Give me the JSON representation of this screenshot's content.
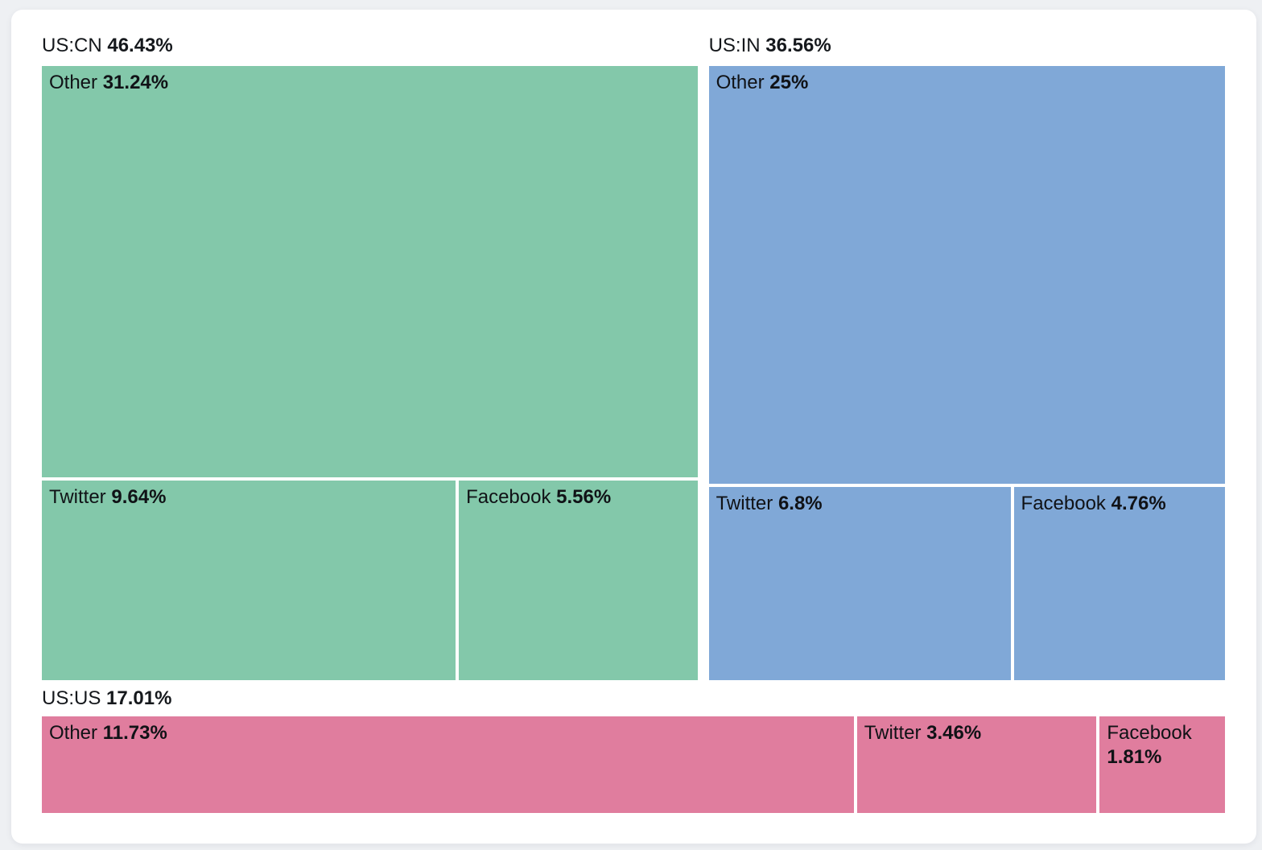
{
  "chart_data": {
    "type": "treemap",
    "title": "",
    "legend": "none",
    "label_color": "#101216",
    "background": "#ffffff",
    "groups": [
      {
        "label": "US:CN",
        "pct_label": "46.43%",
        "value": 46.43,
        "color": "#83c8aa",
        "children": [
          {
            "label": "Other",
            "pct_label": "31.24%",
            "value": 31.24
          },
          {
            "label": "Twitter",
            "pct_label": "9.64%",
            "value": 9.64
          },
          {
            "label": "Facebook",
            "pct_label": "5.56%",
            "value": 5.56
          }
        ]
      },
      {
        "label": "US:IN",
        "pct_label": "36.56%",
        "value": 36.56,
        "color": "#80a8d7",
        "children": [
          {
            "label": "Other",
            "pct_label": "25%",
            "value": 25
          },
          {
            "label": "Twitter",
            "pct_label": "6.8%",
            "value": 6.8
          },
          {
            "label": "Facebook",
            "pct_label": "4.76%",
            "value": 4.76
          }
        ]
      },
      {
        "label": "US:US",
        "pct_label": "17.01%",
        "value": 17.01,
        "color": "#e07d9e",
        "children": [
          {
            "label": "Other",
            "pct_label": "11.73%",
            "value": 11.73
          },
          {
            "label": "Twitter",
            "pct_label": "3.46%",
            "value": 3.46
          },
          {
            "label": "Facebook",
            "pct_label": "1.81%",
            "value": 1.81
          }
        ]
      }
    ]
  }
}
